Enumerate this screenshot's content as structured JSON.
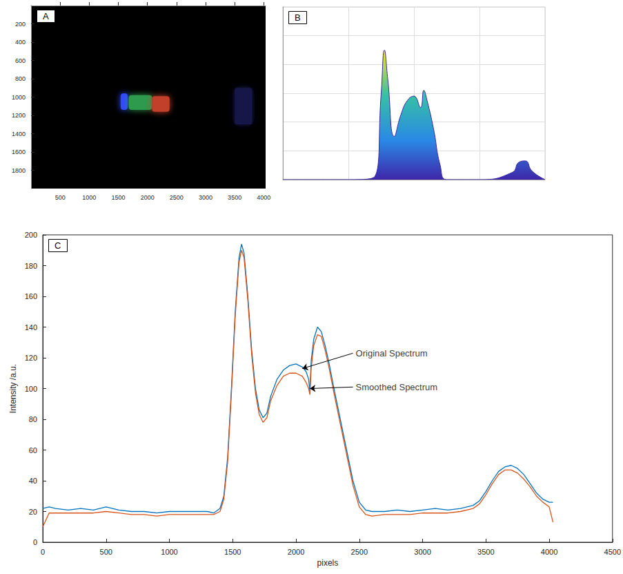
{
  "chart_data": [
    {
      "type": "image",
      "title": "A",
      "xlim": [
        0,
        4032
      ],
      "xticks": [
        500,
        1000,
        1500,
        2000,
        2500,
        3000,
        3500,
        4000
      ],
      "ylim": [
        0,
        2000
      ],
      "yticks": [
        200,
        400,
        600,
        800,
        1000,
        1200,
        1400,
        1600,
        1800
      ],
      "bands": [
        {
          "x": [
            1540,
            1660
          ],
          "y": [
            960,
            1140
          ],
          "color": "#3048ff"
        },
        {
          "x": [
            1680,
            2080
          ],
          "y": [
            980,
            1140
          ],
          "color": "#2f9a4e"
        },
        {
          "x": [
            2080,
            2380
          ],
          "y": [
            990,
            1160
          ],
          "color": "#c2402a"
        },
        {
          "x": [
            3500,
            3800
          ],
          "y": [
            900,
            1300
          ],
          "color": "#141848"
        }
      ]
    },
    {
      "type": "surface",
      "title": "B",
      "x": [
        0,
        500,
        1000,
        1400,
        1500,
        1550,
        1600,
        1700,
        1800,
        1900,
        2000,
        2100,
        2150,
        2200,
        2300,
        2400,
        2500,
        3000,
        3500,
        3600,
        3700,
        3800,
        4000
      ],
      "values": [
        0,
        0,
        0,
        2,
        60,
        90,
        70,
        30,
        45,
        55,
        58,
        50,
        62,
        55,
        35,
        10,
        0,
        0,
        5,
        12,
        13,
        6,
        0
      ],
      "xlim": [
        0,
        4000
      ],
      "xticks": [
        0,
        1000,
        2000,
        3000,
        4000
      ],
      "ylim": [
        0,
        120
      ],
      "yticks": [
        0,
        20,
        40,
        60,
        80,
        100,
        120
      ],
      "tick_labels": false,
      "grid": true
    },
    {
      "type": "line",
      "title": "C",
      "x_label": "pixels",
      "y_label": "Intensity /a.u.",
      "x": [
        0,
        50,
        100,
        200,
        300,
        400,
        500,
        600,
        700,
        800,
        900,
        1000,
        1100,
        1200,
        1300,
        1350,
        1400,
        1430,
        1460,
        1490,
        1520,
        1550,
        1570,
        1590,
        1620,
        1650,
        1680,
        1710,
        1740,
        1770,
        1800,
        1850,
        1900,
        1950,
        2000,
        2050,
        2080,
        2100,
        2110,
        2120,
        2140,
        2170,
        2200,
        2230,
        2260,
        2300,
        2350,
        2400,
        2450,
        2500,
        2550,
        2600,
        2700,
        2800,
        2900,
        3000,
        3100,
        3200,
        3300,
        3400,
        3450,
        3500,
        3550,
        3600,
        3650,
        3700,
        3750,
        3800,
        3850,
        3900,
        3950,
        4000,
        4030
      ],
      "series": [
        {
          "name": "Original Spectrum",
          "color": "#0072bd",
          "values": [
            22,
            23,
            22,
            21,
            22,
            21,
            23,
            21,
            20,
            20,
            19,
            20,
            20,
            20,
            20,
            19,
            22,
            30,
            55,
            100,
            150,
            185,
            194,
            188,
            160,
            125,
            100,
            86,
            81,
            84,
            95,
            106,
            112,
            115,
            116,
            114,
            111,
            106,
            98,
            118,
            132,
            140,
            137,
            128,
            117,
            100,
            80,
            60,
            40,
            26,
            21,
            20,
            20,
            21,
            20,
            21,
            22,
            21,
            22,
            24,
            27,
            33,
            40,
            46,
            49,
            50,
            48,
            44,
            38,
            32,
            28,
            26,
            26
          ]
        },
        {
          "name": "Smoothed Spectrum",
          "color": "#d95319",
          "values": [
            10,
            19,
            19,
            19,
            19,
            19,
            20,
            19,
            18,
            18,
            17,
            18,
            18,
            18,
            18,
            18,
            20,
            28,
            52,
            97,
            147,
            182,
            190,
            185,
            157,
            122,
            97,
            83,
            78,
            81,
            92,
            102,
            108,
            110,
            110,
            108,
            104,
            100,
            96,
            113,
            128,
            135,
            134,
            125,
            114,
            97,
            77,
            57,
            37,
            23,
            18,
            17,
            18,
            18,
            18,
            19,
            19,
            19,
            20,
            22,
            25,
            31,
            38,
            44,
            47,
            47,
            45,
            41,
            36,
            30,
            26,
            23,
            13
          ]
        }
      ],
      "xlim": [
        0,
        4500
      ],
      "xticks": [
        0,
        500,
        1000,
        1500,
        2000,
        2500,
        3000,
        3500,
        4000,
        4500
      ],
      "ylim": [
        0,
        200
      ],
      "yticks": [
        0,
        20,
        40,
        60,
        80,
        100,
        120,
        140,
        160,
        180,
        200
      ],
      "grid": false,
      "annotations": [
        {
          "text": "Original Spectrum",
          "x": 2450,
          "y": 123,
          "arrow_x": 2050,
          "arrow_y": 113
        },
        {
          "text": "Smoothed Spectrum",
          "x": 2450,
          "y": 101,
          "arrow_x": 2110,
          "arrow_y": 100
        }
      ]
    }
  ]
}
